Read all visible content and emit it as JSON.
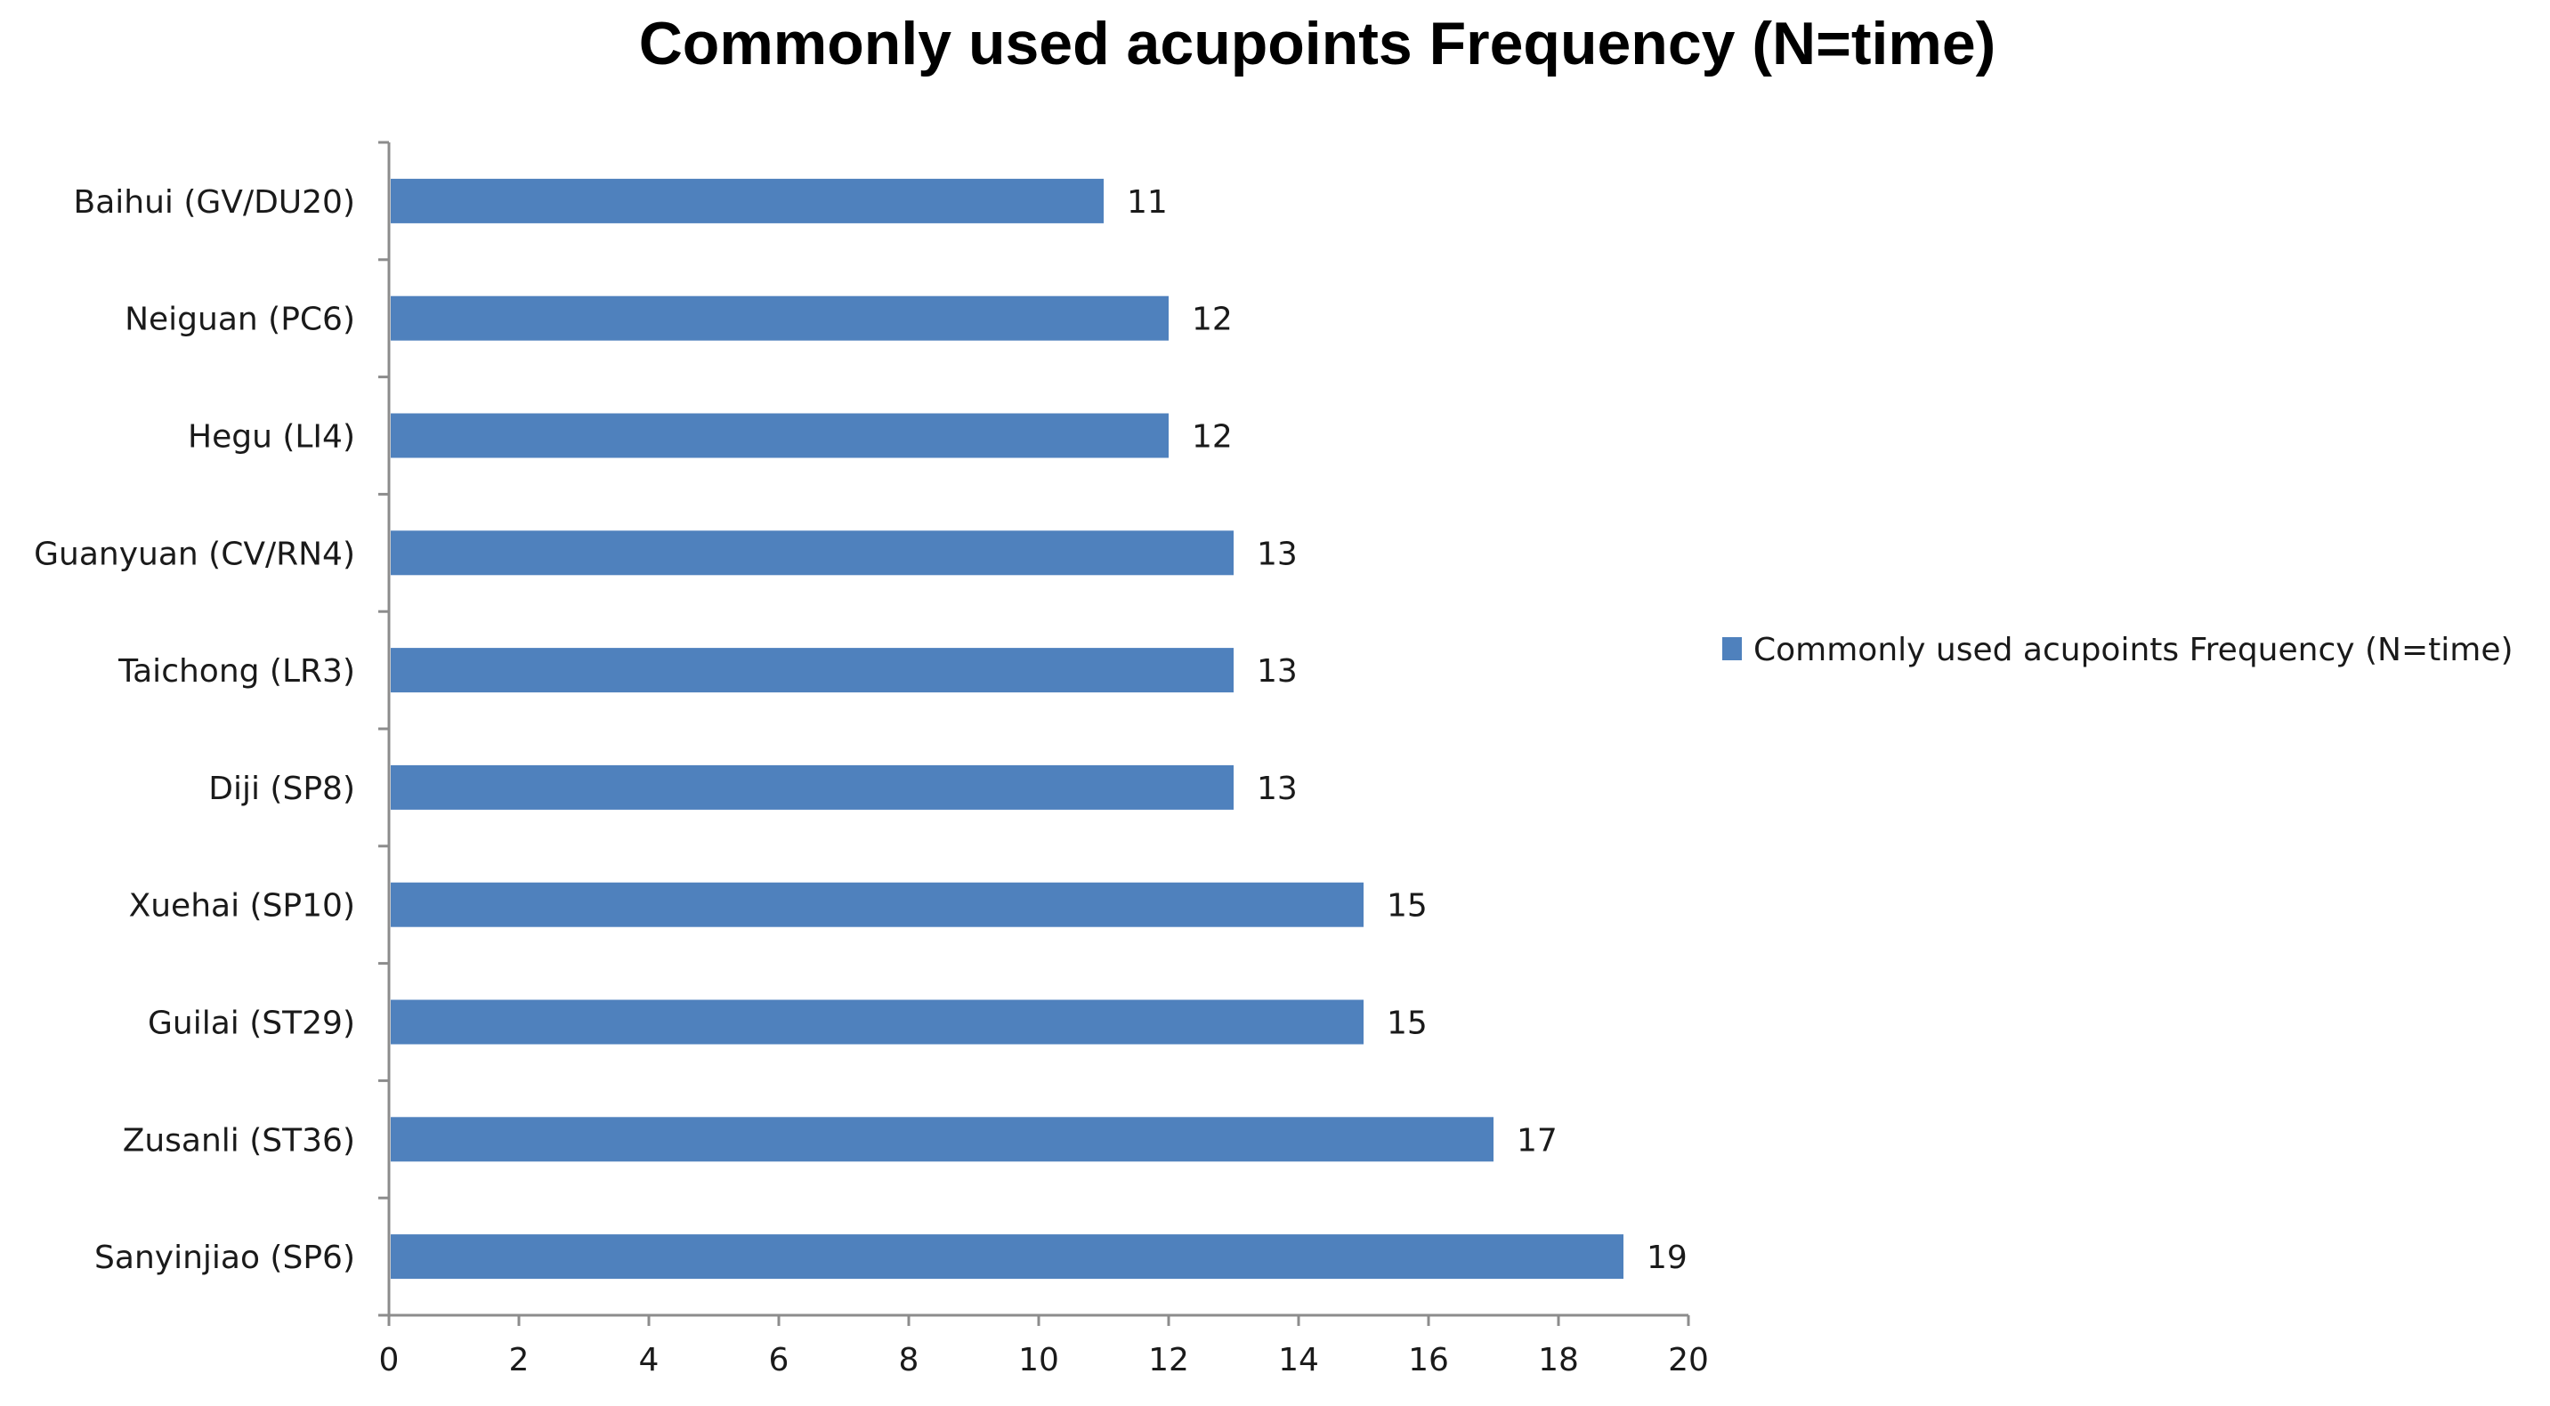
{
  "chart_data": {
    "type": "bar",
    "orientation": "horizontal",
    "title": "Commonly used acupoints  Frequency (N=time)",
    "xlabel": "",
    "ylabel": "",
    "categories": [
      "Baihui (GV/DU20)",
      "Neiguan (PC6)",
      "Hegu (LI4)",
      "Guanyuan (CV/RN4)",
      "Taichong (LR3)",
      "Diji (SP8)",
      "Xuehai (SP10)",
      "Guilai (ST29)",
      "Zusanli (ST36)",
      "Sanyinjiao (SP6)"
    ],
    "series": [
      {
        "name": "Commonly used acupoints  Frequency (N=time)",
        "values": [
          11,
          12,
          12,
          13,
          13,
          13,
          15,
          15,
          17,
          19
        ],
        "color": "#4f81bd"
      }
    ],
    "xlim": [
      0,
      20
    ],
    "xticks": [
      "0",
      "2",
      "4",
      "6",
      "8",
      "10",
      "12",
      "14",
      "16",
      "18",
      "20"
    ],
    "data_labels": true,
    "grid": false,
    "legend": "right"
  }
}
